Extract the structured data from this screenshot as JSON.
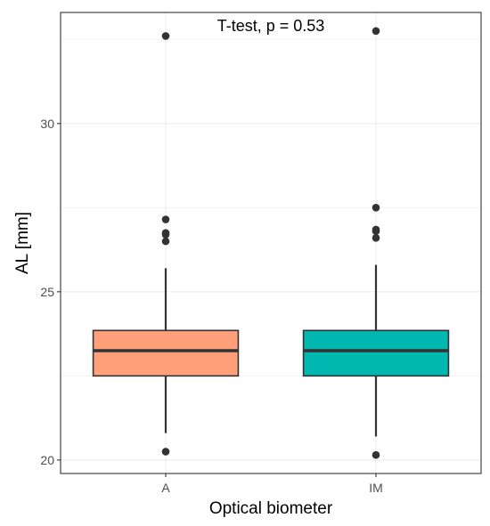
{
  "chart_data": {
    "type": "boxplot",
    "title": "",
    "xlabel": "Optical biometer",
    "ylabel": "AL [mm]",
    "annotation": "T-test, p = 0.53",
    "ylim": [
      19.6,
      33.3
    ],
    "y_ticks": [
      20,
      25,
      30
    ],
    "y_minor_ticks": [
      22.5,
      27.5,
      32.5
    ],
    "grid": true,
    "legend": "none",
    "categories": [
      "A",
      "IM"
    ],
    "series": [
      {
        "category": "A",
        "color": "#FFA07A",
        "q1": 22.5,
        "median": 23.25,
        "q3": 23.85,
        "whisker_low": 20.8,
        "whisker_high": 25.7,
        "outliers": [
          20.25,
          26.5,
          26.7,
          26.75,
          27.15,
          32.6
        ]
      },
      {
        "category": "IM",
        "color": "#00B8B0",
        "q1": 22.5,
        "median": 23.25,
        "q3": 23.85,
        "whisker_low": 20.7,
        "whisker_high": 25.8,
        "outliers": [
          20.15,
          26.6,
          26.8,
          26.85,
          27.5,
          32.75
        ]
      }
    ]
  }
}
